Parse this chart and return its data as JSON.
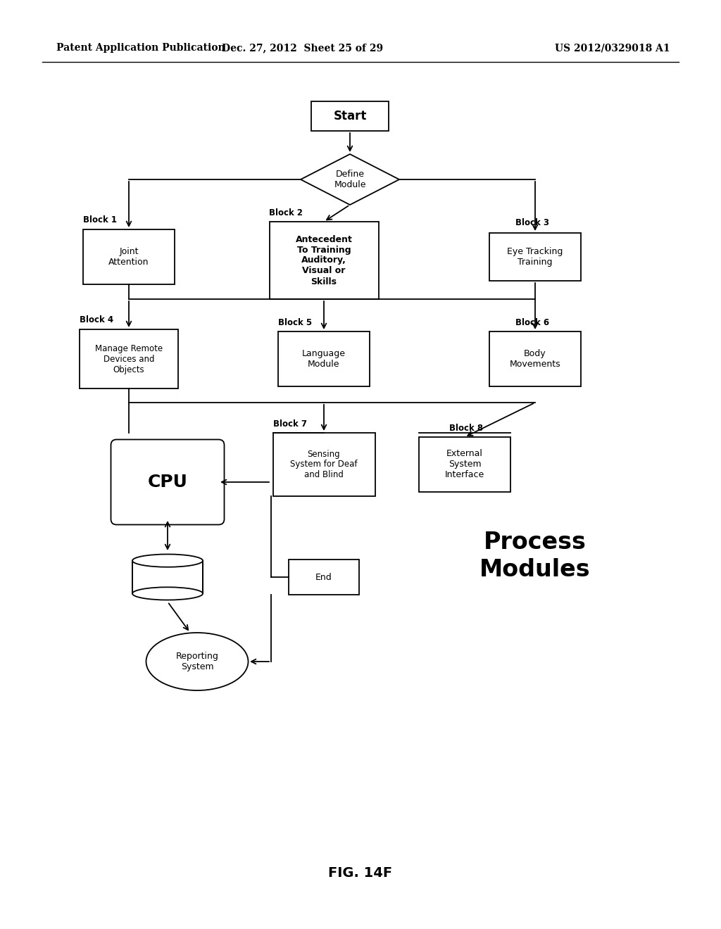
{
  "bg_color": "#ffffff",
  "header_left": "Patent Application Publication",
  "header_mid": "Dec. 27, 2012  Sheet 25 of 29",
  "header_right": "US 2012/0329018 A1",
  "footer": "FIG. 14F",
  "process_modules_label": "Process\nModules"
}
